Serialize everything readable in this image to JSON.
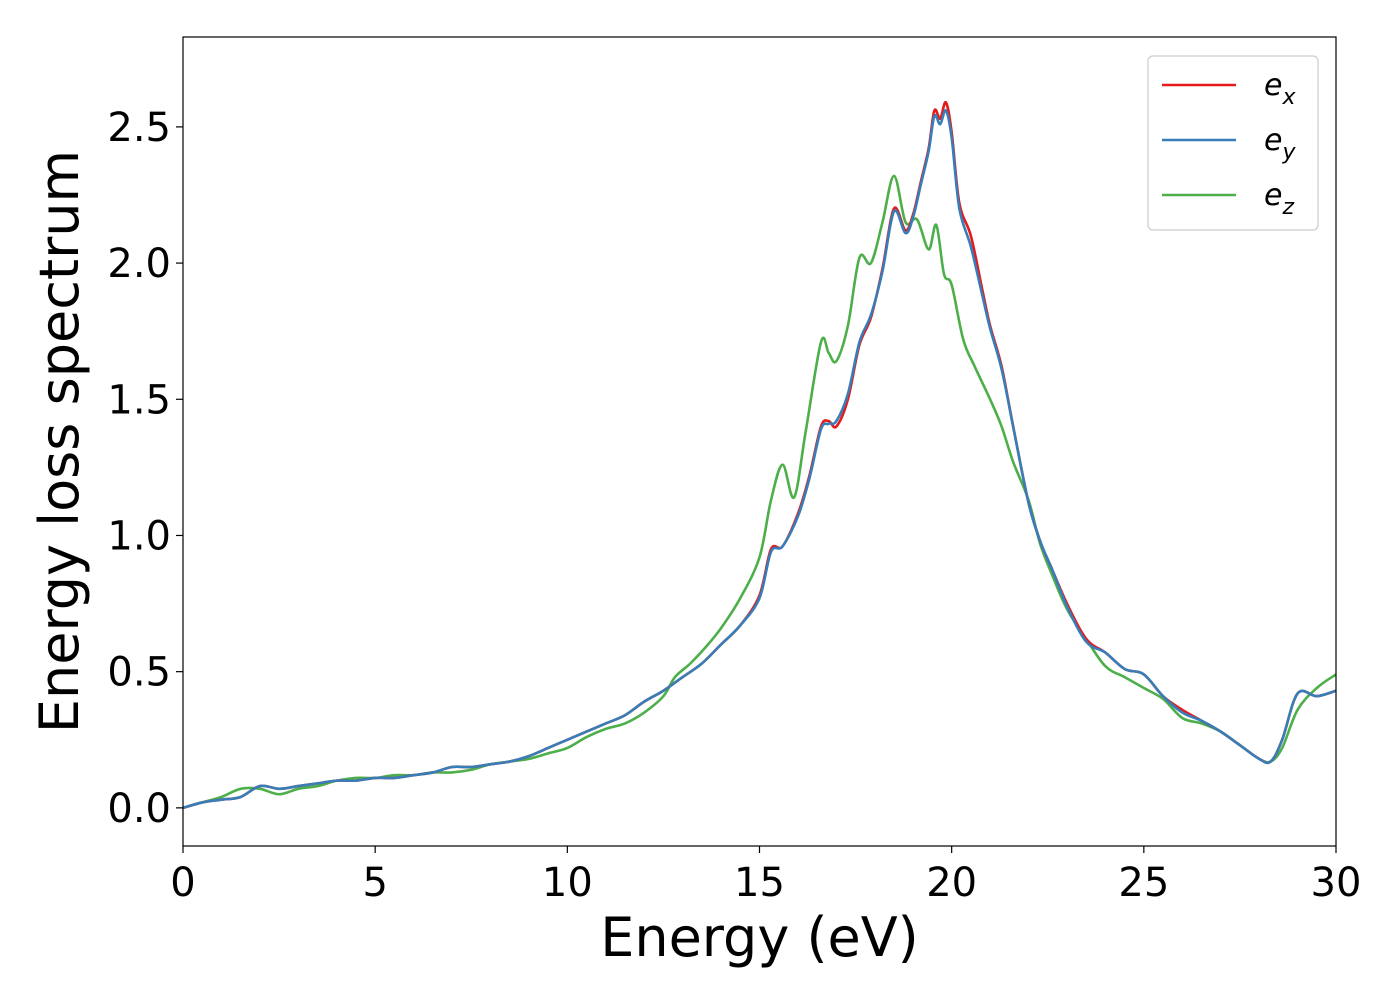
{
  "chart_data": {
    "type": "line",
    "title": "",
    "xlabel": "Energy (eV)",
    "ylabel": "Energy loss spectrum",
    "xlim": [
      0,
      30
    ],
    "ylim": [
      -0.14,
      2.83
    ],
    "xticks": [
      0,
      5,
      10,
      15,
      20,
      25,
      30
    ],
    "xtick_labels": [
      "0",
      "5",
      "10",
      "15",
      "20",
      "25",
      "30"
    ],
    "yticks": [
      0.0,
      0.5,
      1.0,
      1.5,
      2.0,
      2.5
    ],
    "ytick_labels": [
      "0.0",
      "0.5",
      "1.0",
      "1.5",
      "2.0",
      "2.5"
    ],
    "grid": false,
    "legend_position": "top-right",
    "series": [
      {
        "name": "e_x",
        "label_base": "e",
        "label_sub": "x",
        "color": "#e41a1c",
        "x": [
          0,
          0.5,
          1,
          1.5,
          2,
          2.5,
          3,
          3.5,
          4,
          4.5,
          5,
          5.5,
          6,
          6.5,
          7,
          7.5,
          8,
          8.5,
          9,
          9.5,
          10,
          10.5,
          11,
          11.5,
          12,
          12.5,
          13,
          13.5,
          14,
          14.5,
          15,
          15.3,
          15.6,
          16,
          16.3,
          16.6,
          16.8,
          17,
          17.3,
          17.6,
          17.9,
          18.2,
          18.5,
          18.8,
          19.0,
          19.2,
          19.4,
          19.55,
          19.7,
          19.85,
          20.0,
          20.2,
          20.5,
          20.8,
          21.0,
          21.3,
          21.6,
          22.0,
          22.3,
          22.6,
          23.0,
          23.5,
          24.0,
          24.5,
          25.0,
          25.5,
          26.0,
          26.5,
          27.0,
          27.5,
          28.0,
          28.3,
          28.6,
          29.0,
          29.5,
          30
        ],
        "y": [
          0.0,
          0.02,
          0.03,
          0.04,
          0.08,
          0.07,
          0.08,
          0.09,
          0.1,
          0.1,
          0.11,
          0.11,
          0.12,
          0.13,
          0.15,
          0.15,
          0.16,
          0.17,
          0.19,
          0.22,
          0.25,
          0.28,
          0.31,
          0.34,
          0.39,
          0.43,
          0.48,
          0.53,
          0.6,
          0.67,
          0.78,
          0.95,
          0.96,
          1.08,
          1.22,
          1.4,
          1.42,
          1.4,
          1.5,
          1.7,
          1.8,
          1.98,
          2.2,
          2.12,
          2.18,
          2.3,
          2.42,
          2.56,
          2.53,
          2.59,
          2.48,
          2.22,
          2.1,
          1.9,
          1.77,
          1.62,
          1.4,
          1.12,
          0.98,
          0.88,
          0.75,
          0.62,
          0.57,
          0.51,
          0.49,
          0.41,
          0.36,
          0.32,
          0.28,
          0.23,
          0.18,
          0.17,
          0.25,
          0.42,
          0.41,
          0.43
        ]
      },
      {
        "name": "e_y",
        "label_base": "e",
        "label_sub": "y",
        "color": "#377eb8",
        "x": [
          0,
          0.5,
          1,
          1.5,
          2,
          2.5,
          3,
          3.5,
          4,
          4.5,
          5,
          5.5,
          6,
          6.5,
          7,
          7.5,
          8,
          8.5,
          9,
          9.5,
          10,
          10.5,
          11,
          11.5,
          12,
          12.5,
          13,
          13.5,
          14,
          14.5,
          15,
          15.3,
          15.6,
          16,
          16.3,
          16.6,
          16.8,
          17,
          17.3,
          17.6,
          17.9,
          18.2,
          18.5,
          18.8,
          19.0,
          19.2,
          19.4,
          19.55,
          19.7,
          19.85,
          20.0,
          20.2,
          20.5,
          20.8,
          21.0,
          21.3,
          21.6,
          22.0,
          22.3,
          22.6,
          23.0,
          23.5,
          24.0,
          24.5,
          25.0,
          25.5,
          26.0,
          26.5,
          27.0,
          27.5,
          28.0,
          28.3,
          28.6,
          29.0,
          29.5,
          30
        ],
        "y": [
          0.0,
          0.02,
          0.03,
          0.04,
          0.08,
          0.07,
          0.08,
          0.09,
          0.1,
          0.1,
          0.11,
          0.11,
          0.12,
          0.13,
          0.15,
          0.15,
          0.16,
          0.17,
          0.19,
          0.22,
          0.25,
          0.28,
          0.31,
          0.34,
          0.39,
          0.43,
          0.48,
          0.53,
          0.6,
          0.67,
          0.77,
          0.94,
          0.96,
          1.07,
          1.21,
          1.39,
          1.41,
          1.42,
          1.52,
          1.71,
          1.81,
          1.97,
          2.19,
          2.11,
          2.17,
          2.29,
          2.41,
          2.54,
          2.51,
          2.56,
          2.46,
          2.2,
          2.06,
          1.88,
          1.76,
          1.61,
          1.4,
          1.12,
          0.98,
          0.88,
          0.74,
          0.61,
          0.57,
          0.51,
          0.49,
          0.41,
          0.35,
          0.32,
          0.28,
          0.23,
          0.18,
          0.17,
          0.25,
          0.42,
          0.41,
          0.43
        ]
      },
      {
        "name": "e_z",
        "label_base": "e",
        "label_sub": "z",
        "color": "#4daf4a",
        "x": [
          0,
          0.5,
          1,
          1.5,
          2,
          2.5,
          3,
          3.5,
          4,
          4.5,
          5,
          5.5,
          6,
          6.5,
          7,
          7.5,
          8,
          8.5,
          9,
          9.5,
          10,
          10.5,
          11,
          11.5,
          12,
          12.5,
          12.8,
          13.2,
          13.6,
          14,
          14.5,
          15,
          15.3,
          15.6,
          15.9,
          16.2,
          16.6,
          16.8,
          17.0,
          17.3,
          17.6,
          17.9,
          18.2,
          18.5,
          18.8,
          19.1,
          19.4,
          19.6,
          19.8,
          20.0,
          20.3,
          20.6,
          21.0,
          21.3,
          21.6,
          22.0,
          22.3,
          22.6,
          23.0,
          23.5,
          24.0,
          24.5,
          25.0,
          25.5,
          26.0,
          26.5,
          27.0,
          27.5,
          28.0,
          28.3,
          28.6,
          29.0,
          29.5,
          30
        ],
        "y": [
          0.0,
          0.02,
          0.04,
          0.07,
          0.07,
          0.05,
          0.07,
          0.08,
          0.1,
          0.11,
          0.11,
          0.12,
          0.12,
          0.13,
          0.13,
          0.14,
          0.16,
          0.17,
          0.18,
          0.2,
          0.22,
          0.26,
          0.29,
          0.31,
          0.35,
          0.41,
          0.48,
          0.53,
          0.59,
          0.66,
          0.77,
          0.92,
          1.13,
          1.26,
          1.14,
          1.38,
          1.71,
          1.67,
          1.64,
          1.77,
          2.02,
          2.0,
          2.15,
          2.32,
          2.15,
          2.16,
          2.05,
          2.14,
          1.96,
          1.92,
          1.72,
          1.62,
          1.5,
          1.4,
          1.27,
          1.13,
          0.97,
          0.86,
          0.73,
          0.62,
          0.52,
          0.48,
          0.44,
          0.4,
          0.33,
          0.31,
          0.28,
          0.23,
          0.18,
          0.17,
          0.22,
          0.36,
          0.44,
          0.49
        ]
      }
    ]
  }
}
